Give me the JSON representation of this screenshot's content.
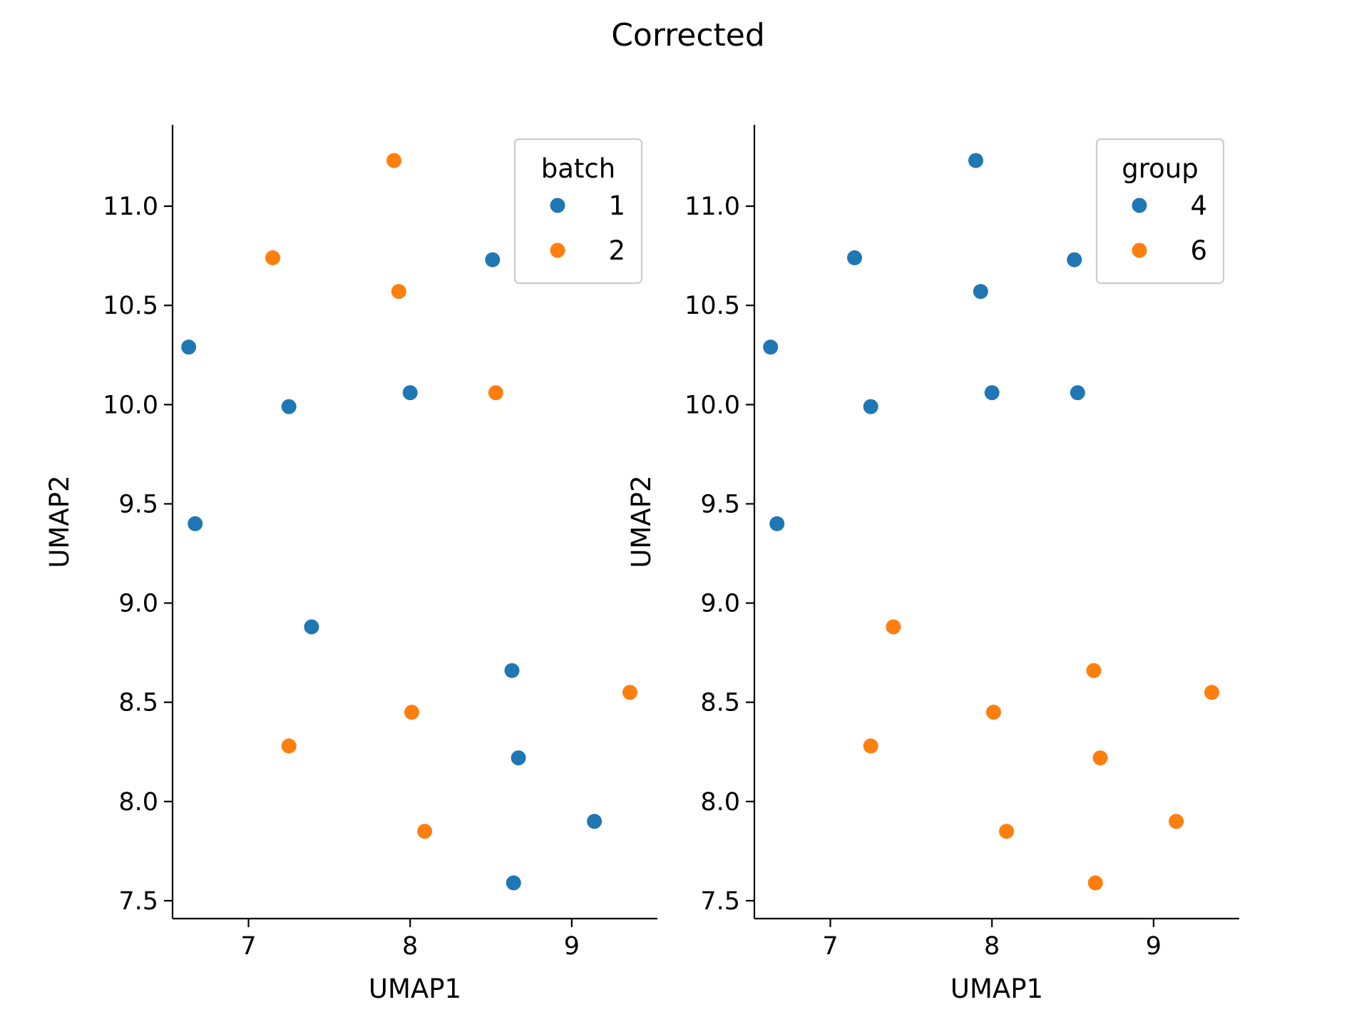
{
  "figure": {
    "title": "Corrected"
  },
  "colors": {
    "blue": "#1f77b4",
    "orange": "#ff7f0e"
  },
  "chart_data": [
    {
      "type": "scatter",
      "xlabel": "UMAP1",
      "ylabel": "UMAP2",
      "xlim": [
        6.53,
        9.53
      ],
      "ylim": [
        7.41,
        11.41
      ],
      "xticks": [
        "7",
        "8",
        "9"
      ],
      "yticks": [
        "7.5",
        "8.0",
        "8.5",
        "9.0",
        "9.5",
        "10.0",
        "10.5",
        "11.0"
      ],
      "grid": false,
      "legend": {
        "title": "batch",
        "placement": "top-right"
      },
      "series": [
        {
          "name": "1",
          "color": "#1f77b4",
          "points": [
            [
              8.51,
              10.73
            ],
            [
              6.63,
              10.29
            ],
            [
              7.25,
              9.99
            ],
            [
              8.0,
              10.06
            ],
            [
              6.67,
              9.4
            ],
            [
              7.39,
              8.88
            ],
            [
              8.63,
              8.66
            ],
            [
              8.67,
              8.22
            ],
            [
              9.14,
              7.9
            ],
            [
              8.64,
              7.59
            ]
          ]
        },
        {
          "name": "2",
          "color": "#ff7f0e",
          "points": [
            [
              7.9,
              11.23
            ],
            [
              7.15,
              10.74
            ],
            [
              7.93,
              10.57
            ],
            [
              8.53,
              10.06
            ],
            [
              9.36,
              8.55
            ],
            [
              8.01,
              8.45
            ],
            [
              7.25,
              8.28
            ],
            [
              8.09,
              7.85
            ]
          ]
        }
      ]
    },
    {
      "type": "scatter",
      "xlabel": "UMAP1",
      "ylabel": "UMAP2",
      "xlim": [
        6.53,
        9.53
      ],
      "ylim": [
        7.41,
        11.41
      ],
      "xticks": [
        "7",
        "8",
        "9"
      ],
      "yticks": [
        "7.5",
        "8.0",
        "8.5",
        "9.0",
        "9.5",
        "10.0",
        "10.5",
        "11.0"
      ],
      "grid": false,
      "legend": {
        "title": "group",
        "placement": "top-right"
      },
      "series": [
        {
          "name": "4",
          "color": "#1f77b4",
          "points": [
            [
              7.9,
              11.23
            ],
            [
              7.15,
              10.74
            ],
            [
              8.51,
              10.73
            ],
            [
              7.93,
              10.57
            ],
            [
              6.63,
              10.29
            ],
            [
              7.25,
              9.99
            ],
            [
              8.0,
              10.06
            ],
            [
              8.53,
              10.06
            ],
            [
              6.67,
              9.4
            ]
          ]
        },
        {
          "name": "6",
          "color": "#ff7f0e",
          "points": [
            [
              7.39,
              8.88
            ],
            [
              8.63,
              8.66
            ],
            [
              9.36,
              8.55
            ],
            [
              8.01,
              8.45
            ],
            [
              7.25,
              8.28
            ],
            [
              8.67,
              8.22
            ],
            [
              9.14,
              7.9
            ],
            [
              8.09,
              7.85
            ],
            [
              8.64,
              7.59
            ]
          ]
        }
      ]
    }
  ]
}
